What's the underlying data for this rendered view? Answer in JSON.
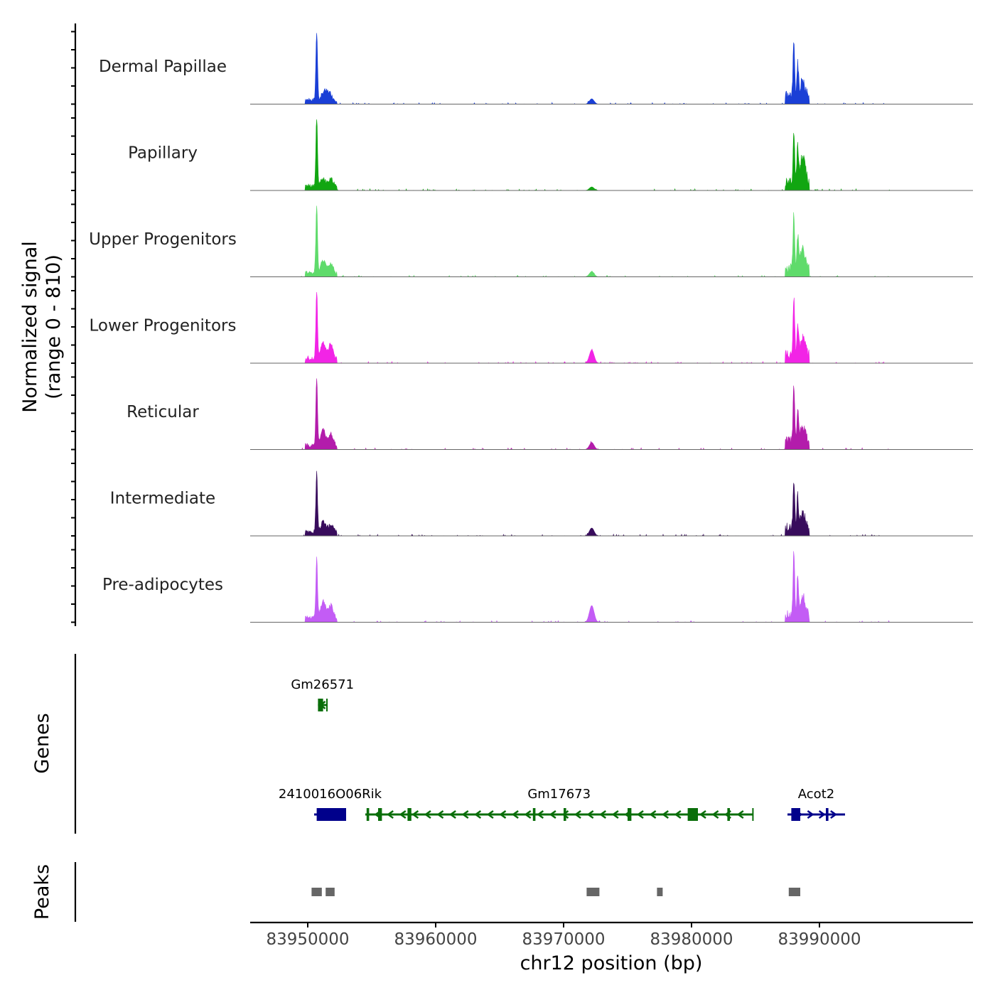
{
  "chart_data": {
    "type": "area",
    "title": "",
    "chromosome": "chr12",
    "xlabel": "chr12 position (bp)",
    "xlim": [
      83945500,
      84002000
    ],
    "x_ticks": [
      83950000,
      83960000,
      83970000,
      83980000,
      83990000
    ],
    "x_tick_labels": [
      "83950000",
      "83960000",
      "83970000",
      "83980000",
      "83990000"
    ],
    "signal": {
      "ylabel_line1": "Normalized signal",
      "ylabel_line2": "(range 0 - 810)",
      "ylim": [
        0,
        810
      ],
      "tracks": [
        {
          "name": "Dermal Papillae",
          "color": "#1a3fd6",
          "peaks": [
            [
              83950700,
              810
            ],
            [
              83951300,
              100
            ],
            [
              83951700,
              80
            ],
            [
              83972200,
              60
            ],
            [
              83988000,
              650
            ],
            [
              83988300,
              380
            ],
            [
              83988700,
              170
            ]
          ]
        },
        {
          "name": "Papillary",
          "color": "#11a611",
          "peaks": [
            [
              83950700,
              810
            ],
            [
              83951200,
              90
            ],
            [
              83951800,
              85
            ],
            [
              83972200,
              40
            ],
            [
              83988000,
              600
            ],
            [
              83988300,
              390
            ],
            [
              83988700,
              300
            ]
          ]
        },
        {
          "name": "Upper Progenitors",
          "color": "#5fdb6b",
          "peaks": [
            [
              83950700,
              810
            ],
            [
              83951200,
              140
            ],
            [
              83951800,
              110
            ],
            [
              83972200,
              60
            ],
            [
              83988000,
              620
            ],
            [
              83988300,
              370
            ],
            [
              83988700,
              220
            ]
          ]
        },
        {
          "name": "Lower Progenitors",
          "color": "#f224e6",
          "peaks": [
            [
              83950700,
              810
            ],
            [
              83951200,
              190
            ],
            [
              83951800,
              170
            ],
            [
              83972200,
              150
            ],
            [
              83988000,
              650
            ],
            [
              83988300,
              360
            ],
            [
              83988700,
              190
            ]
          ]
        },
        {
          "name": "Reticular",
          "color": "#b31cab",
          "peaks": [
            [
              83950700,
              810
            ],
            [
              83951200,
              180
            ],
            [
              83951800,
              130
            ],
            [
              83972200,
              80
            ],
            [
              83988000,
              630
            ],
            [
              83988300,
              330
            ],
            [
              83988700,
              160
            ]
          ]
        },
        {
          "name": "Intermediate",
          "color": "#380c5c",
          "peaks": [
            [
              83950700,
              700
            ],
            [
              83951200,
              110
            ],
            [
              83951800,
              80
            ],
            [
              83972200,
              90
            ],
            [
              83988000,
              560
            ],
            [
              83988300,
              370
            ],
            [
              83988700,
              160
            ]
          ]
        },
        {
          "name": "Pre-adipocytes",
          "color": "#c35cf5",
          "peaks": [
            [
              83950700,
              700
            ],
            [
              83951200,
              190
            ],
            [
              83951800,
              150
            ],
            [
              83972200,
              190
            ],
            [
              83988000,
              740
            ],
            [
              83988300,
              430
            ],
            [
              83988700,
              200
            ]
          ]
        }
      ]
    },
    "genes": {
      "ylabel": "Genes",
      "items": [
        {
          "name": "Gm26571",
          "strand": "-",
          "start": 83950800,
          "end": 83951500,
          "row": 1,
          "color": "#0a6e0a",
          "exons": [
            [
              83950800,
              83951200
            ]
          ]
        },
        {
          "name": "2410016O06Rik",
          "strand": "+",
          "start": 83950500,
          "end": 83953000,
          "row": 2,
          "color": "#00008b",
          "exons": [
            [
              83950700,
              83953000
            ]
          ]
        },
        {
          "name": "Gm17673",
          "strand": "-",
          "start": 83954500,
          "end": 83984800,
          "row": 2,
          "color": "#0a6e0a",
          "exons": [
            [
              83954600,
              83954800
            ],
            [
              83955500,
              83955800
            ],
            [
              83957800,
              83958100
            ],
            [
              83967600,
              83967800
            ],
            [
              83970000,
              83970200
            ],
            [
              83975000,
              83975300
            ],
            [
              83979700,
              83980500
            ],
            [
              83982800,
              83983000
            ]
          ]
        },
        {
          "name": "Acot2",
          "strand": "+",
          "start": 83987500,
          "end": 83992000,
          "row": 2,
          "color": "#00008b",
          "exons": [
            [
              83987800,
              83988500
            ],
            [
              83990500,
              83990700
            ]
          ]
        }
      ]
    },
    "peaks": {
      "ylabel": "Peaks",
      "regions": [
        [
          83950300,
          83951100
        ],
        [
          83951400,
          83952100
        ],
        [
          83971800,
          83972800
        ],
        [
          83977300,
          83977700
        ],
        [
          83987600,
          83988500
        ]
      ],
      "color": "#666666"
    }
  }
}
